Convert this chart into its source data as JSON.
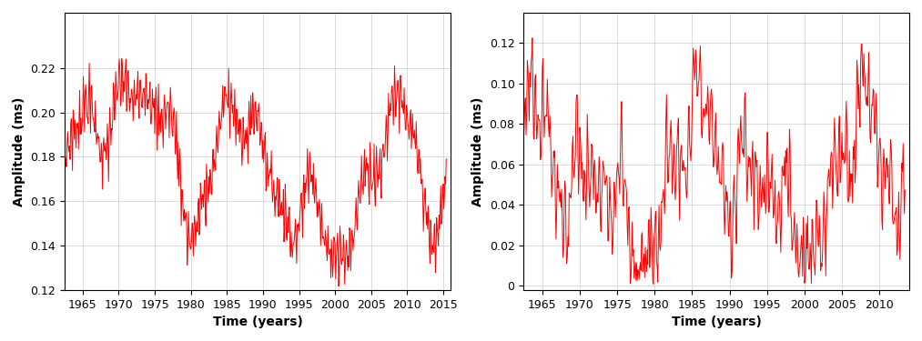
{
  "xlabel": "Time (years)",
  "ylabel": "Amplitude (ms)",
  "xlim_left": [
    1962.5,
    2016
  ],
  "xlim_right": [
    1962.5,
    2014
  ],
  "ylim_left": [
    0.12,
    0.245
  ],
  "ylim_right": [
    -0.002,
    0.135
  ],
  "xticks_left": [
    1965,
    1970,
    1975,
    1980,
    1985,
    1990,
    1995,
    2000,
    2005,
    2010,
    2015
  ],
  "xticks_right": [
    1965,
    1970,
    1975,
    1980,
    1985,
    1990,
    1995,
    2000,
    2005,
    2010
  ],
  "yticks_left": [
    0.12,
    0.14,
    0.16,
    0.18,
    0.2,
    0.22
  ],
  "yticks_right": [
    0.0,
    0.02,
    0.04,
    0.06,
    0.08,
    0.1,
    0.12
  ],
  "line_color": "#FF0000",
  "line_width": 0.7,
  "background_color": "#FFFFFF",
  "grid_color": "#CCCCCC",
  "seed": 7
}
